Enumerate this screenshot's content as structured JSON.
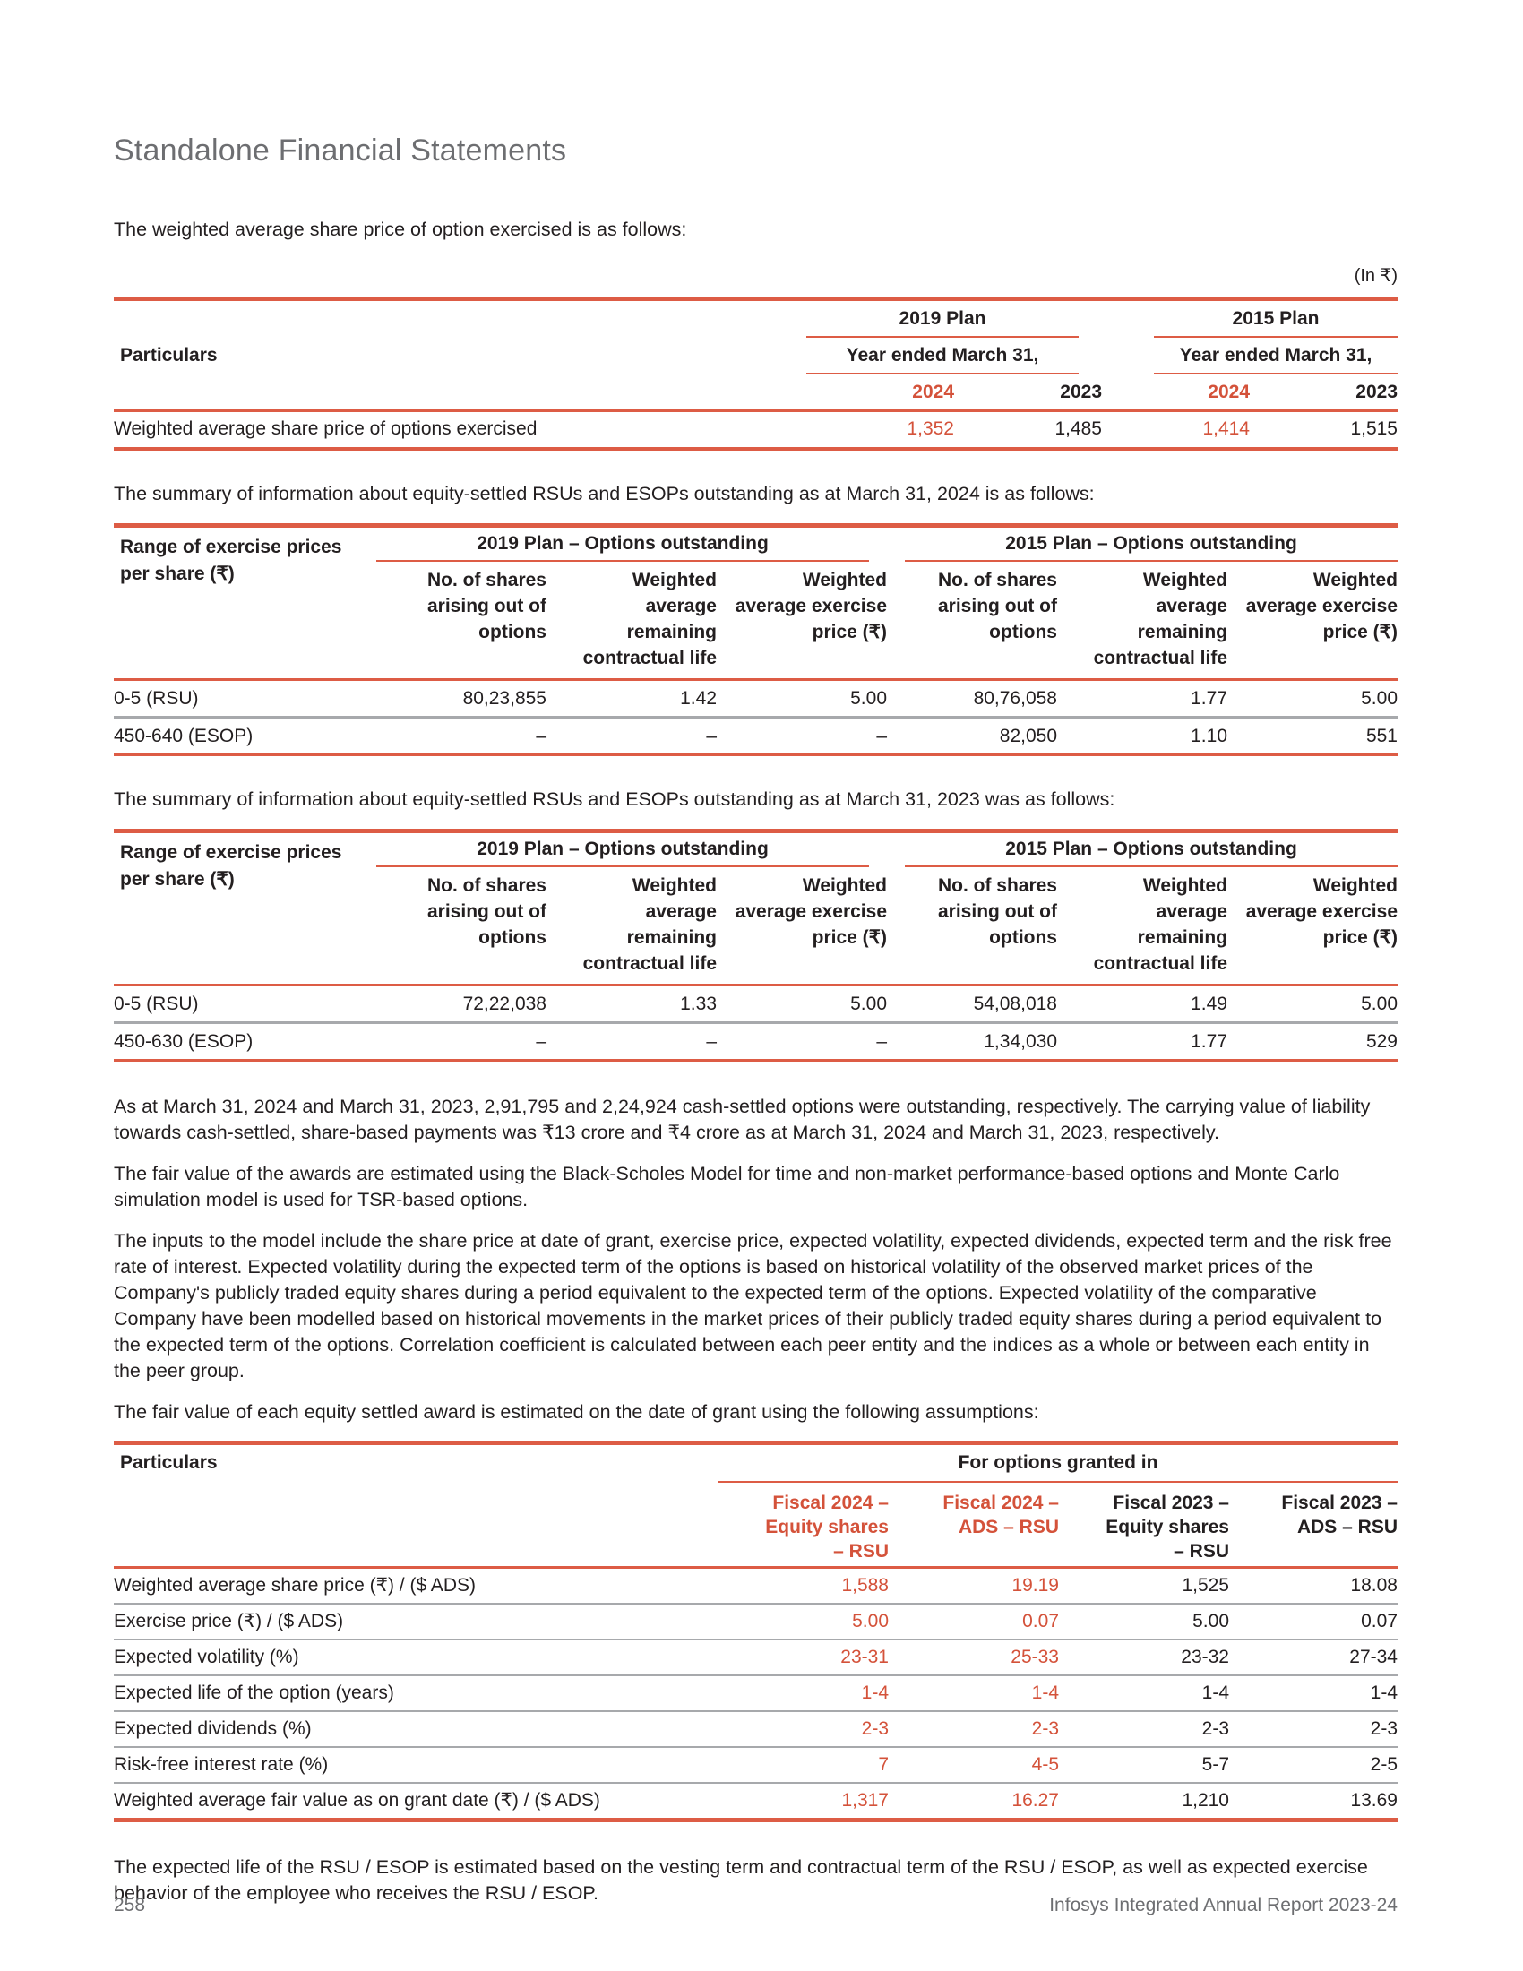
{
  "colors": {
    "accent_line": "#DD5C45",
    "accent_text": "#D4523A",
    "separator_gray": "#A7A9AC",
    "heading_gray": "#6D6E71"
  },
  "header": {
    "title": "Standalone Financial Statements"
  },
  "intro_text": "The weighted average share price of option exercised is as follows:",
  "currency_note": "(In ₹)",
  "options_exercised_table": {
    "particulars_label": "Particulars",
    "plan_2019": "2019 Plan",
    "plan_2015": "2015 Plan",
    "year_ended_label": "Year ended March 31,",
    "years": [
      "2024",
      "2023",
      "2024",
      "2023"
    ],
    "row": {
      "label": "Weighted average share price of options exercised",
      "values": [
        "1,352",
        "1,485",
        "1,414",
        "1,515"
      ]
    }
  },
  "rsu_table_header": {
    "range_label": "Range of exercise prices\nper share (₹)",
    "plan_2019": "2019 Plan – Options outstanding",
    "plan_2015": "2015 Plan – Options outstanding",
    "sub_shares": "No. of shares\narising out of\noptions",
    "sub_life": "Weighted\naverage\nremaining\ncontractual life",
    "sub_price": "Weighted\naverage exercise\nprice (₹)"
  },
  "outstanding_2024": {
    "intro": "The summary of information about equity-settled RSUs and ESOPs outstanding as at March 31, 2024 is as follows:",
    "rows": [
      {
        "label": "0-5 (RSU)",
        "values": [
          "80,23,855",
          "1.42",
          "5.00",
          "80,76,058",
          "1.77",
          "5.00"
        ]
      },
      {
        "label": "450-640 (ESOP)",
        "values": [
          "–",
          "–",
          "–",
          "82,050",
          "1.10",
          "551"
        ]
      }
    ]
  },
  "outstanding_2023": {
    "intro": "The summary of information about equity-settled RSUs and ESOPs outstanding as at March 31, 2023 was as follows:",
    "rows": [
      {
        "label": "0-5 (RSU)",
        "values": [
          "72,22,038",
          "1.33",
          "5.00",
          "54,08,018",
          "1.49",
          "5.00"
        ]
      },
      {
        "label": "450-630 (ESOP)",
        "values": [
          "–",
          "–",
          "–",
          "1,34,030",
          "1.77",
          "529"
        ]
      }
    ]
  },
  "paragraphs": {
    "cash_settled": "As at March 31, 2024 and March 31, 2023, 2,91,795 and 2,24,924 cash-settled options were outstanding, respectively. The carrying value of liability towards cash-settled, share-based payments was ₹13 crore and ₹4 crore as at March 31, 2024 and March 31, 2023, respectively.",
    "fair_value_model": "The fair value of the awards are estimated using the Black-Scholes Model for time and non-market performance-based options and Monte Carlo simulation model is used for TSR-based options.",
    "model_inputs": "The inputs to the model include the share price at date of grant, exercise price, expected volatility, expected dividends, expected term and the risk free rate of interest. Expected volatility during the expected term of the options is based on historical volatility of the observed market prices of the Company's publicly traded equity shares during a period equivalent to the expected term of the options. Expected volatility of the comparative Company have been modelled based on historical movements in the market prices of their publicly traded equity shares during a period equivalent to the expected term of the options. Correlation coefficient is calculated between each peer entity and the indices as a whole or between each entity in the peer group.",
    "assumptions_intro": "The fair value of each equity settled award is estimated on the date of grant using the following assumptions:",
    "expected_life": "The expected life of the RSU / ESOP is estimated based on the vesting term and contractual term of the RSU / ESOP, as well as expected exercise behavior of the employee who receives the RSU / ESOP."
  },
  "assumptions_table": {
    "particulars_label": "Particulars",
    "group_header": "For options granted in",
    "columns": [
      "Fiscal 2024 –\nEquity shares\n– RSU",
      "Fiscal 2024 –\nADS – RSU",
      "Fiscal 2023 –\nEquity shares\n– RSU",
      "Fiscal 2023 –\nADS – RSU"
    ],
    "rows": [
      {
        "label": "Weighted average share price (₹) / ($ ADS)",
        "values": [
          "1,588",
          "19.19",
          "1,525",
          "18.08"
        ]
      },
      {
        "label": "Exercise price (₹) / ($ ADS)",
        "values": [
          "5.00",
          "0.07",
          "5.00",
          "0.07"
        ]
      },
      {
        "label": "Expected volatility (%)",
        "values": [
          "23-31",
          "25-33",
          "23-32",
          "27-34"
        ]
      },
      {
        "label": "Expected life of the option (years)",
        "values": [
          "1-4",
          "1-4",
          "1-4",
          "1-4"
        ]
      },
      {
        "label": "Expected dividends (%)",
        "values": [
          "2-3",
          "2-3",
          "2-3",
          "2-3"
        ]
      },
      {
        "label": "Risk-free interest rate (%)",
        "values": [
          "7",
          "4-5",
          "5-7",
          "2-5"
        ]
      },
      {
        "label": "Weighted average fair value as on grant date (₹) / ($ ADS)",
        "values": [
          "1,317",
          "16.27",
          "1,210",
          "13.69"
        ]
      }
    ]
  },
  "footer": {
    "page_number": "258",
    "report_title": "Infosys Integrated Annual Report 2023-24"
  }
}
